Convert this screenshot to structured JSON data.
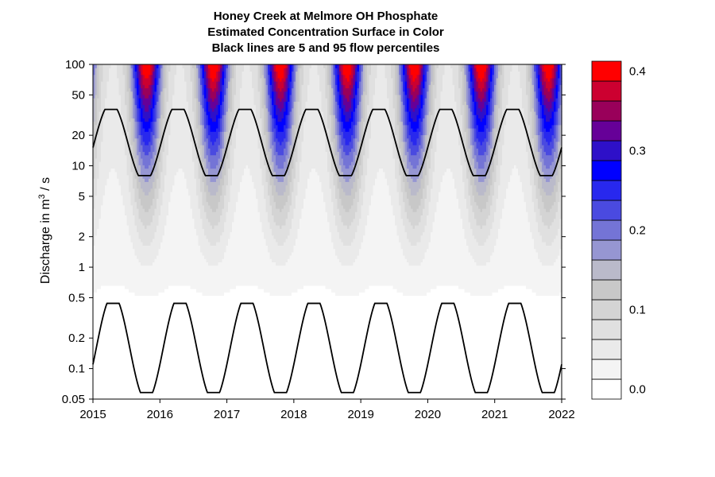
{
  "chart_data": {
    "type": "heatmap",
    "title": "Honey Creek at Melmore OH    Phosphate",
    "subtitle_lines": [
      "Estimated Concentration Surface in Color",
      "Black lines are 5 and 95 flow percentiles"
    ],
    "ylabel_prefix": "Discharge in m",
    "ylabel_superscript": "3",
    "ylabel_suffix": " / s",
    "xlim": [
      2015,
      2022
    ],
    "ylim": [
      0.05,
      100
    ],
    "yscale": "log",
    "x_ticks": [
      2015,
      2016,
      2017,
      2018,
      2019,
      2020,
      2021,
      2022
    ],
    "x_tick_labels": [
      "2015",
      "2016",
      "2017",
      "2018",
      "2019",
      "2020",
      "2021",
      "2022"
    ],
    "y_ticks": [
      0.05,
      0.1,
      0.2,
      0.5,
      1,
      2,
      5,
      10,
      20,
      50,
      100
    ],
    "y_tick_labels": [
      "0.05",
      "0.1",
      "0.2",
      "0.5",
      "1",
      "2",
      "5",
      "10",
      "20",
      "50",
      "100"
    ],
    "colorbar": {
      "range": [
        0.0,
        0.4
      ],
      "ticks": [
        0.0,
        0.1,
        0.2,
        0.3,
        0.4
      ],
      "tick_labels": [
        "0.0",
        "0.1",
        "0.2",
        "0.3",
        "0.4"
      ],
      "levels": [
        {
          "from": 0.0,
          "to": 0.025,
          "color": "#ffffff"
        },
        {
          "from": 0.025,
          "to": 0.05,
          "color": "#f4f4f4"
        },
        {
          "from": 0.05,
          "to": 0.075,
          "color": "#eaeaea"
        },
        {
          "from": 0.075,
          "to": 0.1,
          "color": "#e0e0e0"
        },
        {
          "from": 0.1,
          "to": 0.125,
          "color": "#d4d4d4"
        },
        {
          "from": 0.125,
          "to": 0.15,
          "color": "#c8c8c8"
        },
        {
          "from": 0.15,
          "to": 0.175,
          "color": "#babaca"
        },
        {
          "from": 0.175,
          "to": 0.2,
          "color": "#9696d2"
        },
        {
          "from": 0.2,
          "to": 0.225,
          "color": "#7474d6"
        },
        {
          "from": 0.225,
          "to": 0.25,
          "color": "#4a4ae0"
        },
        {
          "from": 0.25,
          "to": 0.275,
          "color": "#2828ee"
        },
        {
          "from": 0.275,
          "to": 0.3,
          "color": "#0000ff"
        },
        {
          "from": 0.3,
          "to": 0.325,
          "color": "#2e10c8"
        },
        {
          "from": 0.325,
          "to": 0.35,
          "color": "#660098"
        },
        {
          "from": 0.35,
          "to": 0.375,
          "color": "#99005a"
        },
        {
          "from": 0.375,
          "to": 0.4,
          "color": "#cc0030"
        },
        {
          "from": 0.4,
          "to": 0.425,
          "color": "#ff0000"
        }
      ]
    },
    "percentile_lines": [
      {
        "percentile": 95,
        "color": "#000000",
        "min": 8,
        "max": 36,
        "peak_season": 0.27,
        "low_season": 0.77
      },
      {
        "percentile": 5,
        "color": "#000000",
        "min": 0.058,
        "max": 0.44,
        "peak_season": 0.3,
        "low_season": 0.8
      }
    ],
    "concentration_surface": {
      "description_values": "seasonal pattern repeating each year",
      "max_concentration": 0.4,
      "high_concentration_season": 0.8,
      "low_concentration_season": 0.3,
      "low_flow_concentration": 0.02
    }
  }
}
